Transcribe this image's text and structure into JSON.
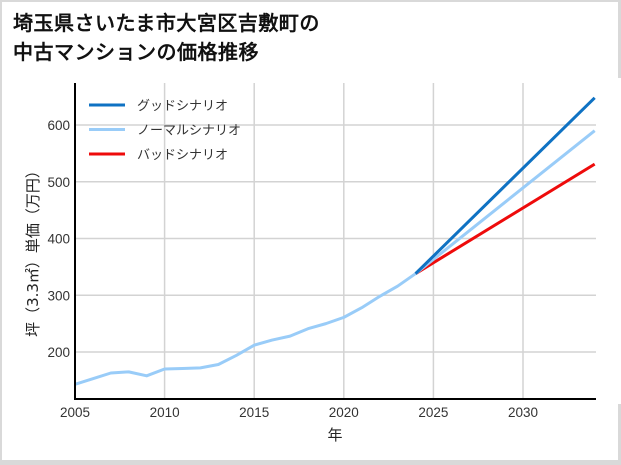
{
  "chart_data": {
    "type": "line",
    "title": "埼玉県さいたま市大宮区吉敷町の中古マンションの価格推移",
    "title_lines": [
      "埼玉県さいたま市大宮区吉敷町の",
      "中古マンションの価格推移"
    ],
    "xlabel": "年",
    "ylabel": "坪（3.3㎡）単価（万円）",
    "xlim": [
      2005,
      2034
    ],
    "ylim": [
      140,
      680
    ],
    "x_ticks": [
      2005,
      2010,
      2015,
      2020,
      2025,
      2030
    ],
    "y_ticks": [
      200,
      300,
      400,
      500,
      600
    ],
    "grid": true,
    "legend_position": "upper left",
    "history": {
      "x": [
        2005,
        2006,
        2007,
        2008,
        2009,
        2010,
        2011,
        2012,
        2013,
        2014,
        2015,
        2016,
        2017,
        2018,
        2019,
        2020,
        2021,
        2022,
        2023,
        2024
      ],
      "values": [
        143,
        153,
        163,
        165,
        158,
        170,
        171,
        172,
        178,
        194,
        212,
        221,
        228,
        241,
        250,
        261,
        278,
        298,
        316,
        338
      ]
    },
    "series": [
      {
        "name": "グッドシナリオ",
        "color": "#0f72c3",
        "x": [
          2024,
          2034
        ],
        "values": [
          338,
          648
        ]
      },
      {
        "name": "ノーマルシナリオ",
        "color": "#99ccf8",
        "x": [
          2024,
          2034
        ],
        "values": [
          338,
          590
        ]
      },
      {
        "name": "バッドシナリオ",
        "color": "#ee0b0b",
        "x": [
          2024,
          2034
        ],
        "values": [
          338,
          531
        ]
      }
    ]
  }
}
